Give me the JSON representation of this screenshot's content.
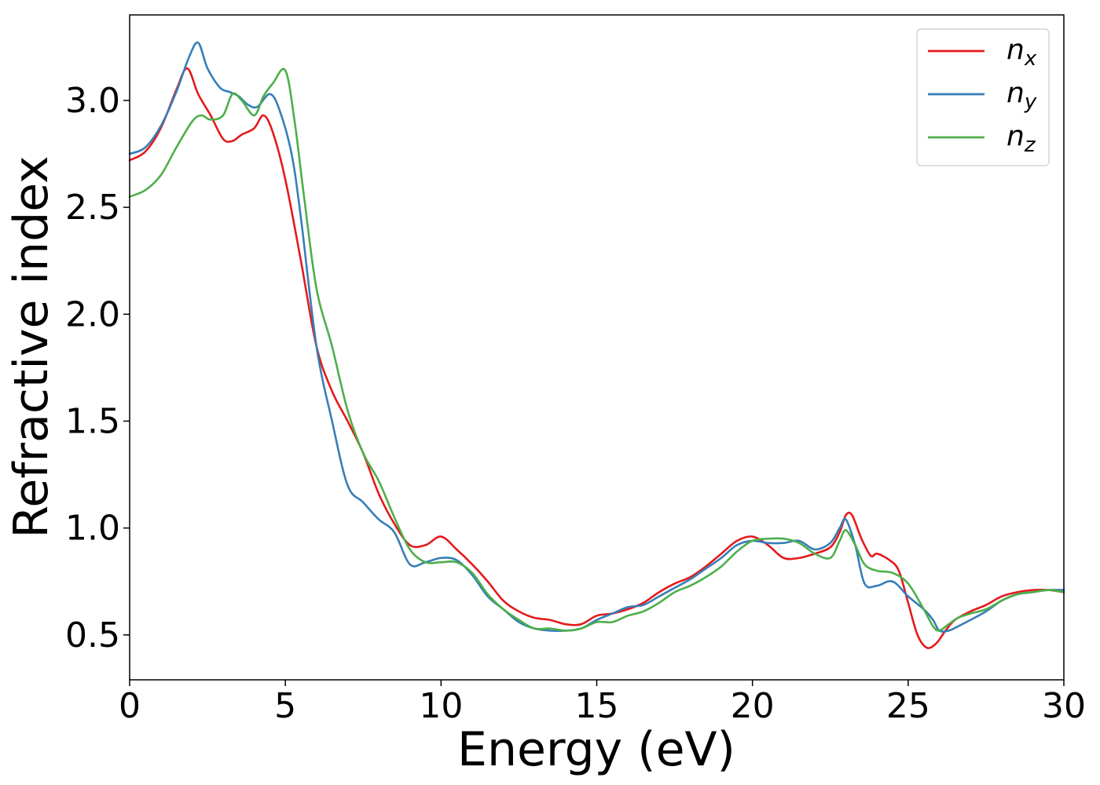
{
  "chart_data": {
    "type": "line",
    "title": "",
    "xlabel": "Energy (eV)",
    "ylabel": "Refractive index",
    "xlim": [
      0,
      30
    ],
    "ylim": [
      0.29,
      3.4
    ],
    "xticks": [
      0,
      5,
      10,
      15,
      20,
      25,
      30
    ],
    "xtick_labels": [
      "0",
      "5",
      "10",
      "15",
      "20",
      "25",
      "30"
    ],
    "yticks": [
      0.5,
      1.0,
      1.5,
      2.0,
      2.5,
      3.0
    ],
    "ytick_labels": [
      "0.5",
      "1.0",
      "1.5",
      "2.0",
      "2.5",
      "3.0"
    ],
    "grid": false,
    "legend_position": "top-right",
    "series": [
      {
        "name": "n",
        "subscript": "x",
        "color": "#e41a1c",
        "x": [
          0,
          0.5,
          1.0,
          1.5,
          1.85,
          2.2,
          2.6,
          3.0,
          3.3,
          3.6,
          4.0,
          4.3,
          4.6,
          5.0,
          5.5,
          6.0,
          6.5,
          7.0,
          7.5,
          8.0,
          8.5,
          9.0,
          9.5,
          10.0,
          10.5,
          11.0,
          11.5,
          12.0,
          12.5,
          13.0,
          13.5,
          14.0,
          14.5,
          15.0,
          15.5,
          16.0,
          16.5,
          17.0,
          17.5,
          18.0,
          18.5,
          19.0,
          19.5,
          20.0,
          20.5,
          21.0,
          21.5,
          22.0,
          22.5,
          22.8,
          23.0,
          23.2,
          23.5,
          23.8,
          24.0,
          24.4,
          24.7,
          25.0,
          25.3,
          25.6,
          25.9,
          26.2,
          26.5,
          27.0,
          27.5,
          28.0,
          28.5,
          29.0,
          29.5,
          30.0
        ],
        "y": [
          2.72,
          2.76,
          2.87,
          3.05,
          3.15,
          3.03,
          2.93,
          2.82,
          2.81,
          2.84,
          2.87,
          2.93,
          2.85,
          2.63,
          2.25,
          1.85,
          1.64,
          1.5,
          1.35,
          1.16,
          1.02,
          0.92,
          0.92,
          0.96,
          0.9,
          0.83,
          0.75,
          0.66,
          0.61,
          0.58,
          0.57,
          0.55,
          0.55,
          0.59,
          0.6,
          0.62,
          0.65,
          0.7,
          0.74,
          0.77,
          0.82,
          0.88,
          0.94,
          0.96,
          0.92,
          0.86,
          0.86,
          0.88,
          0.91,
          0.98,
          1.06,
          1.06,
          0.95,
          0.87,
          0.88,
          0.85,
          0.8,
          0.65,
          0.5,
          0.44,
          0.46,
          0.52,
          0.57,
          0.61,
          0.64,
          0.68,
          0.7,
          0.71,
          0.71,
          0.7
        ]
      },
      {
        "name": "n",
        "subscript": "y",
        "color": "#377eb8",
        "x": [
          0,
          0.5,
          1.0,
          1.5,
          1.9,
          2.2,
          2.5,
          2.9,
          3.2,
          3.5,
          3.8,
          4.1,
          4.5,
          4.8,
          5.2,
          5.5,
          6.0,
          6.5,
          7.0,
          7.5,
          8.0,
          8.5,
          9.0,
          9.5,
          10.0,
          10.5,
          11.0,
          11.5,
          12.0,
          12.5,
          13.0,
          13.5,
          14.0,
          14.5,
          15.0,
          15.5,
          16.0,
          16.5,
          17.0,
          17.5,
          18.0,
          18.5,
          19.0,
          19.5,
          20.0,
          20.5,
          21.0,
          21.5,
          22.0,
          22.5,
          22.8,
          23.0,
          23.3,
          23.6,
          24.0,
          24.5,
          25.0,
          25.5,
          25.8,
          26.0,
          26.3,
          26.6,
          27.0,
          27.5,
          28.0,
          28.5,
          29.0,
          29.5,
          30.0
        ],
        "y": [
          2.75,
          2.78,
          2.88,
          3.04,
          3.2,
          3.27,
          3.15,
          3.06,
          3.04,
          3.02,
          2.98,
          2.97,
          3.03,
          2.96,
          2.75,
          2.45,
          1.85,
          1.5,
          1.2,
          1.12,
          1.04,
          0.98,
          0.83,
          0.84,
          0.86,
          0.85,
          0.78,
          0.68,
          0.62,
          0.56,
          0.53,
          0.52,
          0.52,
          0.53,
          0.57,
          0.6,
          0.63,
          0.64,
          0.68,
          0.72,
          0.76,
          0.81,
          0.86,
          0.92,
          0.94,
          0.93,
          0.93,
          0.94,
          0.9,
          0.93,
          1.0,
          1.04,
          0.92,
          0.74,
          0.73,
          0.75,
          0.68,
          0.62,
          0.57,
          0.52,
          0.52,
          0.54,
          0.57,
          0.61,
          0.66,
          0.69,
          0.7,
          0.71,
          0.71
        ]
      },
      {
        "name": "n",
        "subscript": "z",
        "color": "#4daf4a",
        "x": [
          0,
          0.5,
          1.0,
          1.5,
          2.0,
          2.3,
          2.6,
          3.0,
          3.3,
          3.6,
          4.0,
          4.3,
          4.6,
          5.0,
          5.3,
          5.6,
          6.0,
          6.5,
          7.0,
          7.5,
          8.0,
          8.5,
          9.0,
          9.5,
          10.0,
          10.5,
          11.0,
          11.5,
          12.0,
          12.5,
          13.0,
          13.5,
          14.0,
          14.5,
          15.0,
          15.5,
          16.0,
          16.5,
          17.0,
          17.5,
          18.0,
          18.5,
          19.0,
          19.5,
          20.0,
          20.5,
          21.0,
          21.5,
          22.0,
          22.5,
          22.8,
          23.0,
          23.3,
          23.6,
          24.0,
          24.5,
          25.0,
          25.5,
          25.8,
          26.0,
          26.3,
          26.6,
          27.0,
          27.5,
          28.0,
          28.5,
          29.0,
          29.5,
          30.0
        ],
        "y": [
          2.55,
          2.58,
          2.65,
          2.78,
          2.9,
          2.93,
          2.91,
          2.93,
          3.03,
          3.0,
          2.93,
          3.02,
          3.08,
          3.14,
          2.9,
          2.55,
          2.12,
          1.85,
          1.55,
          1.35,
          1.22,
          1.05,
          0.9,
          0.84,
          0.84,
          0.84,
          0.79,
          0.69,
          0.62,
          0.57,
          0.53,
          0.53,
          0.52,
          0.53,
          0.56,
          0.56,
          0.59,
          0.61,
          0.65,
          0.7,
          0.73,
          0.77,
          0.82,
          0.89,
          0.94,
          0.95,
          0.95,
          0.93,
          0.88,
          0.86,
          0.94,
          0.99,
          0.92,
          0.83,
          0.8,
          0.79,
          0.74,
          0.62,
          0.54,
          0.52,
          0.55,
          0.58,
          0.6,
          0.62,
          0.66,
          0.69,
          0.7,
          0.71,
          0.7
        ]
      }
    ]
  }
}
